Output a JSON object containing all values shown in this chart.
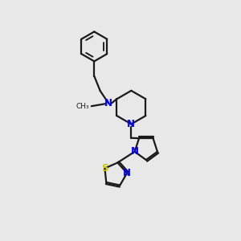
{
  "bg_color": "#e8e8e8",
  "bond_color": "#1a1a1a",
  "N_color": "#0000ff",
  "S_color": "#cccc00",
  "line_width": 1.6,
  "font_size": 8.5,
  "figsize": [
    3.0,
    3.0
  ],
  "dpi": 100,
  "xlim": [
    0,
    10
  ],
  "ylim": [
    0,
    10
  ]
}
